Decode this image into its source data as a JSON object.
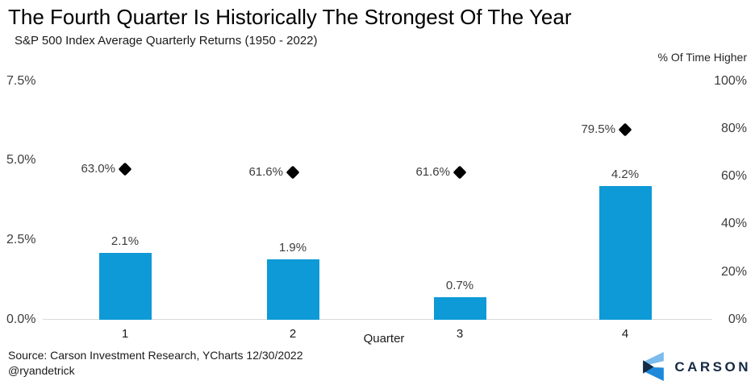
{
  "header": {
    "title": "The Fourth Quarter Is Historically The Strongest Of The Year",
    "subtitle": "S&P 500 Index Average Quarterly Returns (1950 - 2022)"
  },
  "chart_data": {
    "type": "bar",
    "categories": [
      "1",
      "2",
      "3",
      "4"
    ],
    "xlabel": "Quarter",
    "series": [
      {
        "name": "S&P 500 average quarterly return",
        "type": "bar",
        "axis": "left",
        "values": [
          2.1,
          1.9,
          0.7,
          4.2
        ],
        "labels": [
          "2.1%",
          "1.9%",
          "0.7%",
          "4.2%"
        ],
        "color": "#0d9ad6"
      },
      {
        "name": "% Of Time Higher",
        "type": "scatter",
        "marker": "diamond",
        "axis": "right",
        "values": [
          63.0,
          61.6,
          61.6,
          79.5
        ],
        "labels": [
          "63.0%",
          "61.6%",
          "61.6%",
          "79.5%"
        ],
        "color": "#000000"
      }
    ],
    "left_axis": {
      "ticks": [
        "0.0%",
        "2.5%",
        "5.0%",
        "7.5%"
      ],
      "min": 0,
      "max": 7.5
    },
    "right_axis": {
      "label": "% Of Time Higher",
      "ticks": [
        "0%",
        "20%",
        "40%",
        "60%",
        "80%",
        "100%"
      ],
      "min": 0,
      "max": 100
    },
    "grid": false,
    "legend": "none"
  },
  "footer": {
    "source": "Source: Carson Investment Research, YCharts 12/30/2022",
    "handle": "@ryandetrick",
    "logo_text": "CARSON"
  },
  "colors": {
    "bar": "#0d9ad6",
    "marker": "#000000",
    "axis_line": "#d9d9d9",
    "logo_navy": "#152a44",
    "logo_light_blue": "#7bbcec",
    "logo_mid_blue": "#1e88db"
  }
}
